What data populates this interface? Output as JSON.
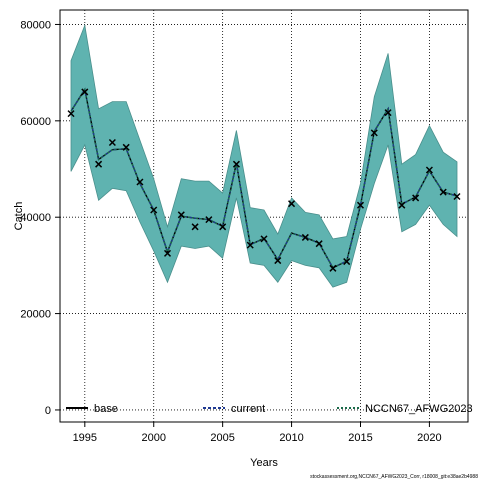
{
  "chart_data": {
    "type": "line",
    "xlabel": "Years",
    "ylabel": "Catch",
    "xlim": [
      1993.2,
      2022.8
    ],
    "ylim": [
      -2500,
      83000
    ],
    "x_ticks": [
      1995,
      2000,
      2005,
      2010,
      2015,
      2020
    ],
    "y_ticks": [
      0,
      20000,
      40000,
      60000,
      80000
    ],
    "grid": true,
    "legend_position": "bottom",
    "x": [
      1994,
      1995,
      1996,
      1997,
      1998,
      1999,
      2000,
      2001,
      2002,
      2003,
      2004,
      2005,
      2006,
      2007,
      2008,
      2009,
      2010,
      2011,
      2012,
      2013,
      2014,
      2015,
      2016,
      2017,
      2018,
      2019,
      2020,
      2021,
      2022
    ],
    "observed": [
      61500,
      66000,
      51000,
      55500,
      54500,
      47300,
      41500,
      32500,
      40500,
      38000,
      39500,
      38000,
      51000,
      34200,
      35500,
      31000,
      42800,
      35800,
      34500,
      29400,
      30800,
      42500,
      57500,
      61700,
      42500,
      44000,
      49800,
      45200,
      44300
    ],
    "band_upper": [
      72500,
      79800,
      62500,
      64000,
      64000,
      56000,
      48000,
      38000,
      48000,
      47500,
      47500,
      45000,
      58000,
      42000,
      41500,
      36500,
      44000,
      41000,
      40500,
      35500,
      36000,
      47000,
      65000,
      74000,
      51000,
      53000,
      59000,
      53500,
      51500
    ],
    "band_lower": [
      49500,
      55000,
      43500,
      46000,
      45500,
      39000,
      33000,
      26500,
      34000,
      33500,
      34000,
      31500,
      44000,
      30500,
      30000,
      26500,
      31000,
      30000,
      29500,
      25500,
      26500,
      37500,
      47000,
      55000,
      37000,
      38500,
      42500,
      38500,
      36000
    ],
    "series": [
      {
        "name": "base",
        "values": [
          62000,
          66500,
          52000,
          54000,
          54200,
          47000,
          41500,
          32800,
          40200,
          39800,
          39500,
          38100,
          51200,
          34300,
          35600,
          31200,
          36700,
          35800,
          34600,
          29500,
          30900,
          42500,
          57800,
          62500,
          42700,
          44200,
          49600,
          45200,
          44400
        ]
      },
      {
        "name": "current",
        "values": [
          62000,
          66500,
          52000,
          54000,
          54200,
          47000,
          41500,
          32800,
          40200,
          39800,
          39500,
          38100,
          51200,
          34300,
          35600,
          31200,
          36700,
          35800,
          34600,
          29500,
          30900,
          42500,
          57800,
          62500,
          42700,
          44200,
          49600,
          45200,
          44400
        ]
      },
      {
        "name": "NCCN67_AFWG2023",
        "values": [
          62000,
          66500,
          52000,
          54000,
          54200,
          47000,
          41500,
          32800,
          40200,
          39800,
          39500,
          38100,
          51200,
          34300,
          35600,
          31200,
          36700,
          35800,
          34600,
          29500,
          30900,
          42500,
          57800,
          62500,
          42700,
          44200,
          49600,
          45200,
          44400
        ]
      }
    ],
    "colors": {
      "band": "#5fb3b0",
      "band_edge": "#4a8f8c",
      "base": "#000000",
      "current": "#1f3a93",
      "nccn": "#1a6b4a"
    },
    "caption": "stockassessment.org,NCCN67_AFWG2023_Corr, r18008_git:e38ae2b4988"
  }
}
